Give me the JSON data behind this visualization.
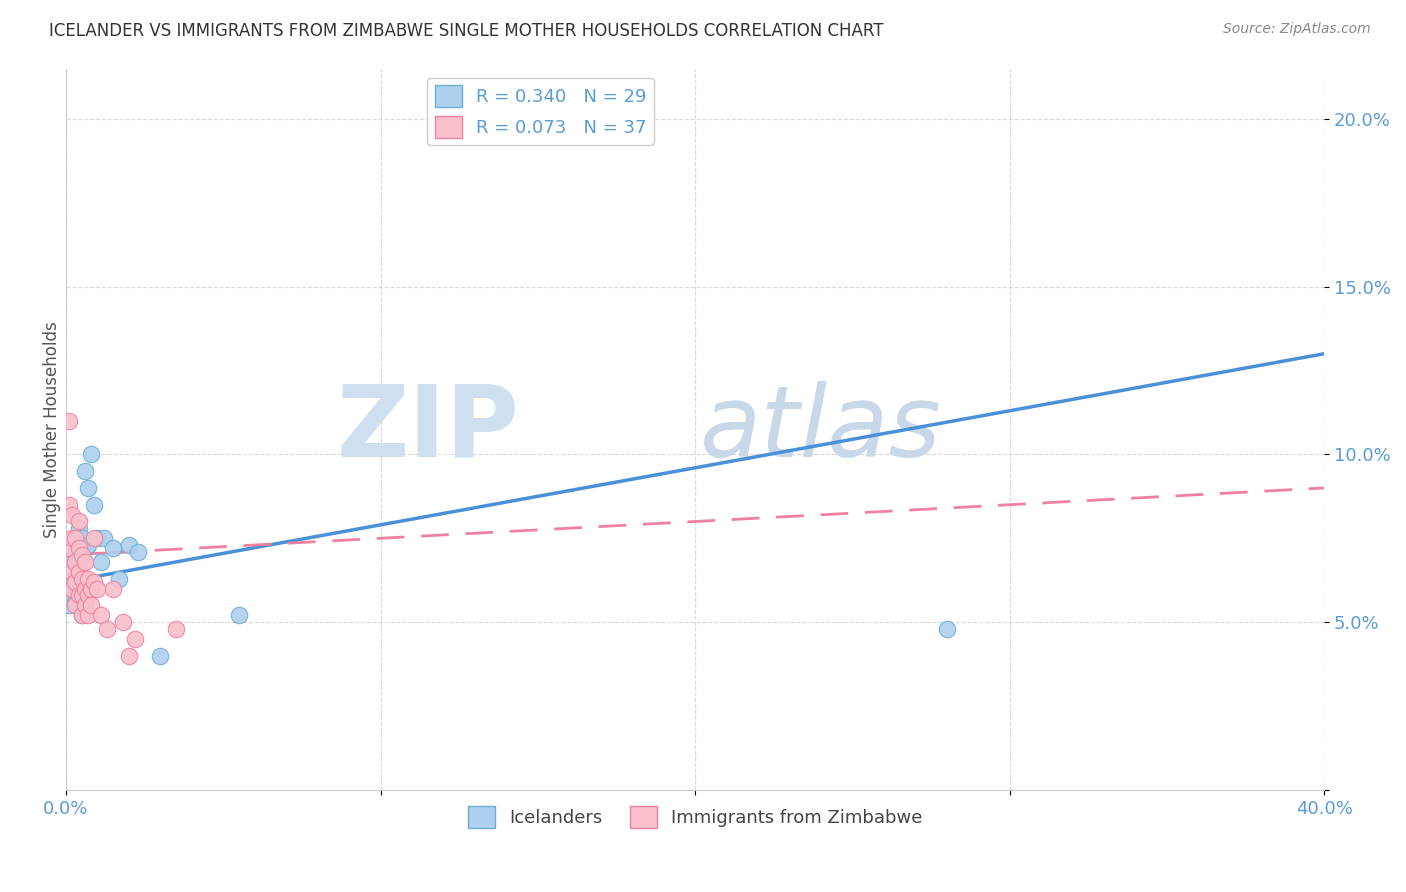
{
  "title": "ICELANDER VS IMMIGRANTS FROM ZIMBABWE SINGLE MOTHER HOUSEHOLDS CORRELATION CHART",
  "source": "Source: ZipAtlas.com",
  "ylabel": "Single Mother Households",
  "legend_icelanders": "Icelanders",
  "legend_zimbabwe": "Immigrants from Zimbabwe",
  "R_icelanders": 0.34,
  "N_icelanders": 29,
  "R_zimbabwe": 0.073,
  "N_zimbabwe": 37,
  "icelander_color": "#aed0ee",
  "zimbabwe_color": "#f9c0cb",
  "icelander_edge_color": "#6aaed6",
  "zimbabwe_edge_color": "#f080a0",
  "icelander_line_color": "#4a90d9",
  "zimbabwe_line_color": "#f080a0",
  "watermark_zip_color": "#d0dff0",
  "watermark_atlas_color": "#c8d8e8",
  "xlim": [
    0.0,
    0.4
  ],
  "ylim": [
    0.0,
    0.215
  ],
  "icelander_x": [
    0.001,
    0.001,
    0.002,
    0.002,
    0.003,
    0.003,
    0.003,
    0.004,
    0.004,
    0.004,
    0.005,
    0.005,
    0.005,
    0.006,
    0.006,
    0.007,
    0.007,
    0.008,
    0.009,
    0.01,
    0.011,
    0.012,
    0.015,
    0.017,
    0.02,
    0.023,
    0.03,
    0.055,
    0.28
  ],
  "icelander_y": [
    0.055,
    0.062,
    0.06,
    0.057,
    0.07,
    0.063,
    0.056,
    0.068,
    0.065,
    0.078,
    0.075,
    0.06,
    0.052,
    0.072,
    0.095,
    0.073,
    0.09,
    0.1,
    0.085,
    0.075,
    0.068,
    0.075,
    0.072,
    0.063,
    0.073,
    0.071,
    0.04,
    0.052,
    0.048
  ],
  "zimbabwe_x": [
    0.001,
    0.001,
    0.001,
    0.002,
    0.002,
    0.002,
    0.002,
    0.003,
    0.003,
    0.003,
    0.003,
    0.004,
    0.004,
    0.004,
    0.004,
    0.005,
    0.005,
    0.005,
    0.005,
    0.006,
    0.006,
    0.006,
    0.007,
    0.007,
    0.007,
    0.008,
    0.008,
    0.009,
    0.009,
    0.01,
    0.011,
    0.013,
    0.015,
    0.018,
    0.02,
    0.022,
    0.035
  ],
  "zimbabwe_y": [
    0.11,
    0.085,
    0.072,
    0.082,
    0.075,
    0.065,
    0.06,
    0.075,
    0.068,
    0.062,
    0.055,
    0.08,
    0.072,
    0.065,
    0.058,
    0.07,
    0.063,
    0.058,
    0.052,
    0.068,
    0.06,
    0.055,
    0.063,
    0.058,
    0.052,
    0.06,
    0.055,
    0.075,
    0.062,
    0.06,
    0.052,
    0.048,
    0.06,
    0.05,
    0.04,
    0.045,
    0.048
  ],
  "ice_line_x0": 0.0,
  "ice_line_y0": 0.062,
  "ice_line_x1": 0.4,
  "ice_line_y1": 0.13,
  "zimb_line_x0": 0.0,
  "zimb_line_y0": 0.07,
  "zimb_line_x1": 0.4,
  "zimb_line_y1": 0.09
}
